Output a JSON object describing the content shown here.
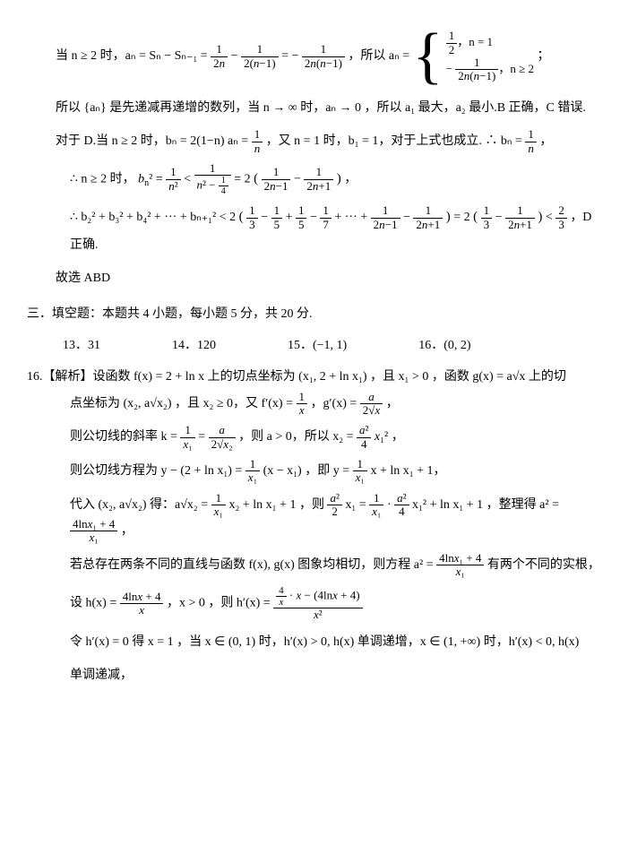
{
  "lines": {
    "l1a": "当 n ≥ 2 时，aₙ = Sₙ − Sₙ₋₁ = ",
    "l1b": "，所以 aₙ = ",
    "l1c": "；",
    "case1": "，n = 1",
    "case2": "，n ≥ 2",
    "l2": "所以 {aₙ} 是先递减再递增的数列，当  n → ∞ 时，aₙ → 0 ，所以 a₁ 最大，a₂ 最小.B 正确，C 错误.",
    "l3a": "对于 D.当 n ≥ 2 时，bₙ = 2(1−n) aₙ = ",
    "l3b": "，又 n = 1 时，b₁ = 1，对于上式也成立. ∴ bₙ = ",
    "l3c": "，",
    "l4a": "∴ n ≥ 2 时，",
    "l4b": "，",
    "l5a": "∴ b₂² + b₃² + b₄² + ··· + bₙ₊₁² < 2",
    "l5b": " = 2",
    "l5c": " < ",
    "l5d": " ，D 正确.",
    "l6": "故选 ABD",
    "sec3": "三．填空题：本题共 4 小题，每小题 5 分，共 20 分.",
    "a13": "13．31",
    "a14": "14．120",
    "a15": "15．(−1, 1)",
    "a16": "16．(0, 2)",
    "s16a": "16.【解析】设函数 f(x) = 2 + ln x  上的切点坐标为 (x₁, 2 + ln x₁) ，且 x₁ > 0 ，函数 g(x) = a√x  上的切",
    "s16b": "点坐标为 (x₂, a√x₂) ，且 x₂ ≥ 0，又 f′(x) = ",
    "s16b2": "，g′(x) = ",
    "s16b3": " ，",
    "s16c1": "则公切线的斜率 k = ",
    "s16c2": " ，则 a > 0，所以 x₂ = ",
    "s16c3": " ，",
    "s16d1": "则公切线方程为 y − (2 + ln x₁) = ",
    "s16d2": "(x − x₁) ，即 y = ",
    "s16d3": " x + ln x₁ + 1，",
    "s16e1": "代入 (x₂, a√x₂) 得：a√x₂ = ",
    "s16e2": " x₂ + ln x₁ + 1 ，则 ",
    "s16e3": " x₁ = ",
    "s16e4": " x₁² + ln x₁ + 1 ，整理得 a² = ",
    "s16e5": " ，",
    "s16f1": "若总存在两条不同的直线与函数 f(x), g(x) 图象均相切，则方程 a² = ",
    "s16f2": "  有两个不同的实根，",
    "s16g1": "设 h(x) = ",
    "s16g2": "，x > 0 ，则 h′(x) = ",
    "s16g3": "",
    "s16h": "令 h′(x) = 0 得 x = 1 ，当 x ∈ (0, 1) 时，h′(x) > 0, h(x) 单调递增，x ∈ (1, +∞) 时，h′(x) < 0, h(x)",
    "s16i": "单调递减，"
  }
}
